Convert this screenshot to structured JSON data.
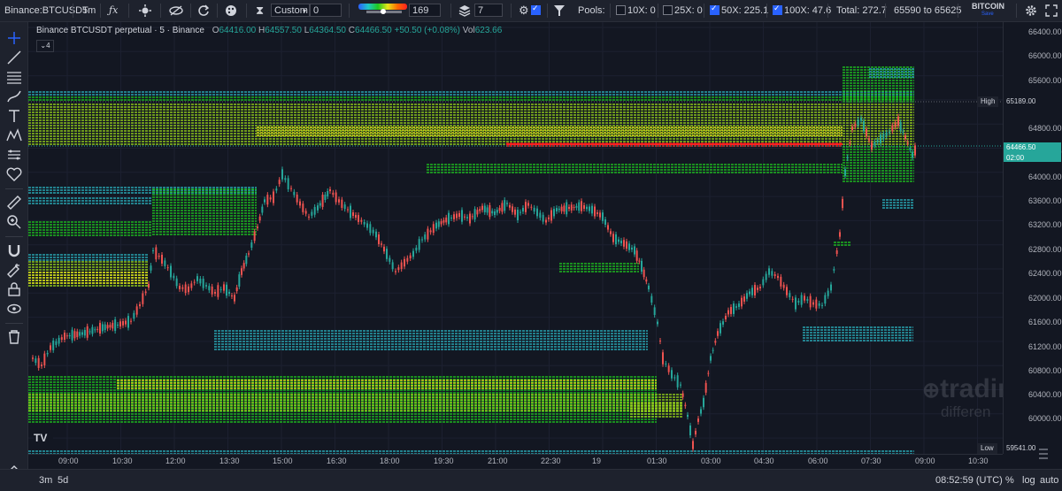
{
  "toolbar": {
    "symbol": "Binance:BTCUSDT",
    "interval": "5m",
    "range_select": "Custom",
    "range_value": "0",
    "gradient_value": "169",
    "layers_value": "7",
    "pools_label": "Pools:",
    "pools": [
      {
        "label": "10X: 0",
        "checked": false
      },
      {
        "label": "25X: 0",
        "checked": false
      },
      {
        "label": "50X: 225.1",
        "checked": true
      },
      {
        "label": "100X: 47.6",
        "checked": true
      }
    ],
    "total": "Total: 272.7",
    "range_text": "65590 to 65625",
    "brand": "BITCOIN",
    "brand_sub": "Save"
  },
  "legend": {
    "title": "Binance BTCUSDT perpetual · 5 · Binance",
    "o_label": "O",
    "o": "64416.00",
    "h_label": "H",
    "h": "64557.50",
    "l_label": "L",
    "l": "64364.50",
    "c_label": "C",
    "c": "64466.50",
    "change": "+50.50 (+0.08%)",
    "vol_label": "Vol",
    "vol": "623.66",
    "indicator_count": "4"
  },
  "price_axis": [
    "66400.00",
    "66000.00",
    "65600.00",
    "64800.00",
    "64400.00",
    "64000.00",
    "63600.00",
    "63200.00",
    "62800.00",
    "62400.00",
    "62000.00",
    "61600.00",
    "61200.00",
    "60800.00",
    "60400.00",
    "60000.00"
  ],
  "price_tags": {
    "high_label": "High",
    "high": "65189.00",
    "current": "64466.50",
    "countdown": "02:00",
    "low_label": "Low",
    "low": "59541.00"
  },
  "time_axis": [
    "09:00",
    "10:30",
    "12:00",
    "13:30",
    "15:00",
    "16:30",
    "18:00",
    "19:30",
    "21:00",
    "22:30",
    "19",
    "01:30",
    "03:00",
    "04:30",
    "06:00",
    "07:30",
    "09:00",
    "10:30"
  ],
  "watermark": {
    "line1": "trading",
    "line2": "differen"
  },
  "bottom": {
    "range_3m": "3m",
    "range_5d": "5d",
    "clock": "08:52:59 (UTC)",
    "pct": "%",
    "log": "log",
    "auto": "auto"
  },
  "colors": {
    "up": "#26a69a",
    "down": "#ef5350",
    "heat_low": "#2bb3c0",
    "heat_mid": "#1ec81e",
    "heat_high": "#e6e619",
    "heat_max": "#ff2020",
    "accent": "#2962ff"
  }
}
